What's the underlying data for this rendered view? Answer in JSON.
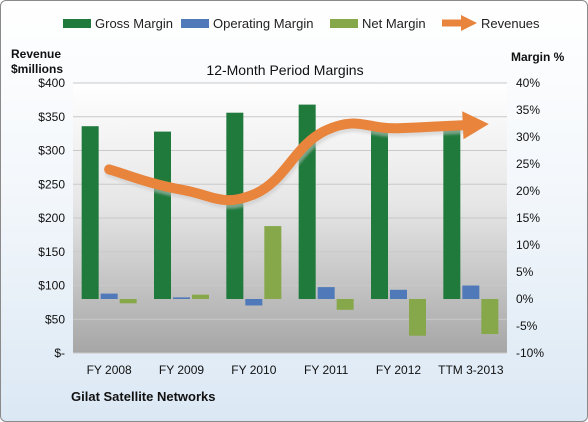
{
  "chart_data": {
    "type": "bar",
    "title": "12-Month Period Margins",
    "company": "Gilat Satellite Networks",
    "ylabel_left": "Revenue\n$millions",
    "ylabel_right": "Margin %",
    "categories": [
      "FY 2008",
      "FY 2009",
      "FY 2010",
      "FY 2011",
      "FY 2012",
      "TTM 3-2013"
    ],
    "left_axis": {
      "min": 0,
      "max": 400,
      "ticks": [
        "$-",
        "$50",
        "$100",
        "$150",
        "$200",
        "$250",
        "$300",
        "$350",
        "$400"
      ]
    },
    "right_axis": {
      "min": -10,
      "max": 40,
      "ticks": [
        "-10%",
        "-5%",
        "0%",
        "5%",
        "10%",
        "15%",
        "20%",
        "25%",
        "30%",
        "35%",
        "40%"
      ]
    },
    "grid": true,
    "legend": {
      "position": "top"
    },
    "series": [
      {
        "name": "Gross Margin",
        "axis": "right",
        "kind": "bar",
        "color": "#1f7a3c",
        "values": [
          32,
          31,
          34.5,
          36,
          32,
          32
        ]
      },
      {
        "name": "Operating Margin",
        "axis": "right",
        "kind": "bar",
        "color": "#4f79b8",
        "values": [
          1,
          0.3,
          -1.2,
          2.2,
          1.7,
          2.5
        ]
      },
      {
        "name": "Net Margin",
        "axis": "right",
        "kind": "bar",
        "color": "#86a84a",
        "values": [
          -0.8,
          0.8,
          13.5,
          -2,
          -6.8,
          -6.5
        ]
      },
      {
        "name": "Revenues",
        "axis": "left",
        "kind": "line",
        "color": "#e8843c",
        "values": [
          272,
          242,
          235,
          330,
          333,
          338
        ]
      }
    ]
  }
}
